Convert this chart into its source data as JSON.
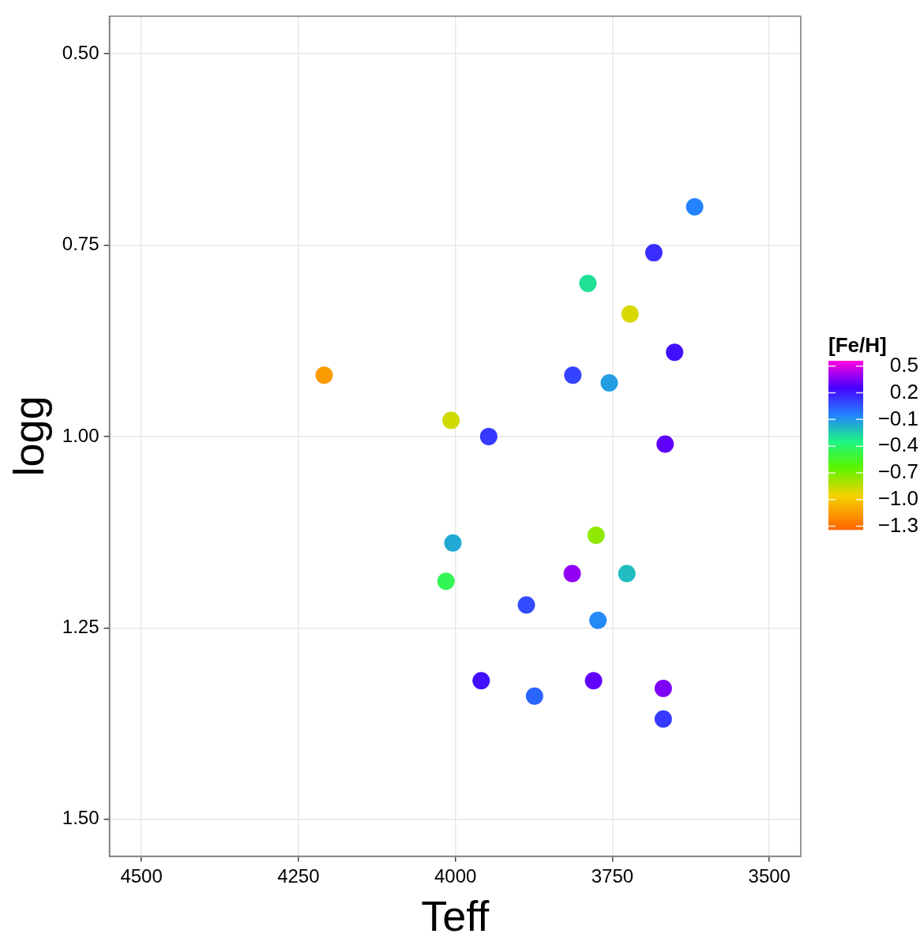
{
  "chart_data": {
    "type": "scatter",
    "xlabel": "Teff",
    "ylabel": "logg",
    "clabel": "[Fe/H]",
    "x": [
      3619,
      3684,
      3789,
      3722,
      3651,
      4209,
      3813,
      3755,
      4007,
      3947,
      3666,
      4004,
      3776,
      4015,
      3814,
      3727,
      3887,
      3773,
      3959,
      3780,
      3874,
      3669,
      3669
    ],
    "values": [
      0.7,
      0.76,
      0.8,
      0.84,
      0.89,
      0.92,
      0.92,
      0.93,
      0.979,
      1.0,
      1.01,
      1.139,
      1.129,
      1.189,
      1.179,
      1.179,
      1.22,
      1.24,
      1.319,
      1.319,
      1.339,
      1.329,
      1.369
    ],
    "cvalues": [
      -0.05,
      0.15,
      -0.3,
      -0.9,
      0.22,
      -1.15,
      0.1,
      -0.12,
      -0.88,
      0.12,
      0.3,
      -0.15,
      -0.75,
      -0.45,
      0.38,
      -0.2,
      0.08,
      -0.07,
      0.22,
      0.3,
      0.02,
      0.35,
      0.12
    ],
    "clim": [
      -1.34,
      0.56
    ],
    "cticks": [
      {
        "value": 0.5,
        "label": "0.5"
      },
      {
        "value": 0.2,
        "label": "0.2"
      },
      {
        "value": -0.1,
        "label": "−0.1"
      },
      {
        "value": -0.4,
        "label": "−0.4"
      },
      {
        "value": -0.7,
        "label": "−0.7"
      },
      {
        "value": -1.0,
        "label": "−1.0"
      },
      {
        "value": -1.3,
        "label": "−1.3"
      }
    ],
    "xlim": [
      4551,
      3450
    ],
    "xticks": [
      4500,
      4250,
      4000,
      3750,
      3500
    ],
    "ylim": [
      1.548,
      0.451
    ],
    "yticks": [
      {
        "value": 0.5,
        "label": "0.50"
      },
      {
        "value": 0.75,
        "label": "0.75"
      },
      {
        "value": 1.0,
        "label": "1.00"
      },
      {
        "value": 1.25,
        "label": "1.25"
      },
      {
        "value": 1.5,
        "label": "1.50"
      }
    ],
    "grid": true,
    "marker": "circle",
    "legend": false
  }
}
